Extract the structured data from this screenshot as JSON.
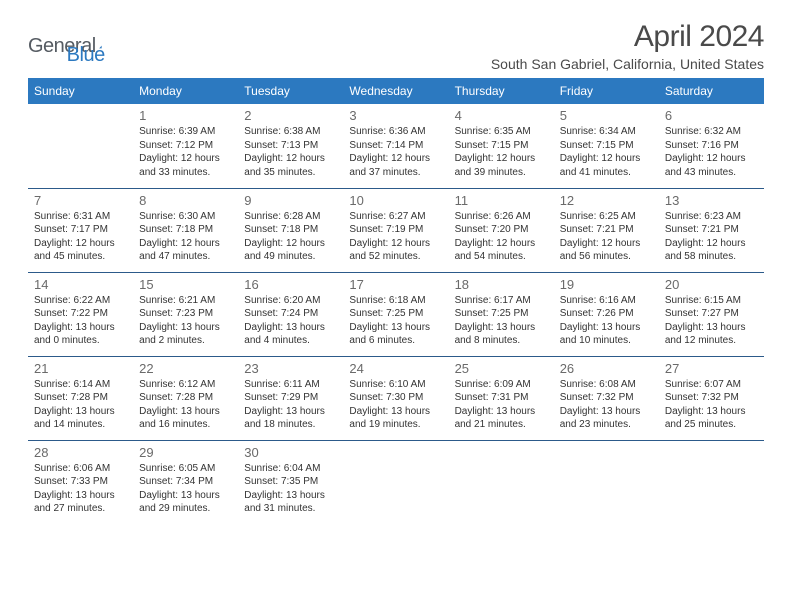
{
  "logo": {
    "general": "General",
    "blue": "Blue"
  },
  "title": "April 2024",
  "location": "South San Gabriel, California, United States",
  "weekdays": [
    "Sunday",
    "Monday",
    "Tuesday",
    "Wednesday",
    "Thursday",
    "Friday",
    "Saturday"
  ],
  "style": {
    "header_bg": "#2c79c0",
    "header_fg": "#ffffff",
    "row_border": "#2c5a8a",
    "daynum_color": "#6a6a6a",
    "text_color": "#333333",
    "title_color": "#4a4a4a",
    "title_fontsize": 30,
    "location_fontsize": 14,
    "th_fontsize": 12,
    "daynum_fontsize": 13,
    "info_fontsize": 10
  },
  "weeks": [
    [
      null,
      {
        "n": "1",
        "sr": "Sunrise: 6:39 AM",
        "ss": "Sunset: 7:12 PM",
        "d1": "Daylight: 12 hours",
        "d2": "and 33 minutes."
      },
      {
        "n": "2",
        "sr": "Sunrise: 6:38 AM",
        "ss": "Sunset: 7:13 PM",
        "d1": "Daylight: 12 hours",
        "d2": "and 35 minutes."
      },
      {
        "n": "3",
        "sr": "Sunrise: 6:36 AM",
        "ss": "Sunset: 7:14 PM",
        "d1": "Daylight: 12 hours",
        "d2": "and 37 minutes."
      },
      {
        "n": "4",
        "sr": "Sunrise: 6:35 AM",
        "ss": "Sunset: 7:15 PM",
        "d1": "Daylight: 12 hours",
        "d2": "and 39 minutes."
      },
      {
        "n": "5",
        "sr": "Sunrise: 6:34 AM",
        "ss": "Sunset: 7:15 PM",
        "d1": "Daylight: 12 hours",
        "d2": "and 41 minutes."
      },
      {
        "n": "6",
        "sr": "Sunrise: 6:32 AM",
        "ss": "Sunset: 7:16 PM",
        "d1": "Daylight: 12 hours",
        "d2": "and 43 minutes."
      }
    ],
    [
      {
        "n": "7",
        "sr": "Sunrise: 6:31 AM",
        "ss": "Sunset: 7:17 PM",
        "d1": "Daylight: 12 hours",
        "d2": "and 45 minutes."
      },
      {
        "n": "8",
        "sr": "Sunrise: 6:30 AM",
        "ss": "Sunset: 7:18 PM",
        "d1": "Daylight: 12 hours",
        "d2": "and 47 minutes."
      },
      {
        "n": "9",
        "sr": "Sunrise: 6:28 AM",
        "ss": "Sunset: 7:18 PM",
        "d1": "Daylight: 12 hours",
        "d2": "and 49 minutes."
      },
      {
        "n": "10",
        "sr": "Sunrise: 6:27 AM",
        "ss": "Sunset: 7:19 PM",
        "d1": "Daylight: 12 hours",
        "d2": "and 52 minutes."
      },
      {
        "n": "11",
        "sr": "Sunrise: 6:26 AM",
        "ss": "Sunset: 7:20 PM",
        "d1": "Daylight: 12 hours",
        "d2": "and 54 minutes."
      },
      {
        "n": "12",
        "sr": "Sunrise: 6:25 AM",
        "ss": "Sunset: 7:21 PM",
        "d1": "Daylight: 12 hours",
        "d2": "and 56 minutes."
      },
      {
        "n": "13",
        "sr": "Sunrise: 6:23 AM",
        "ss": "Sunset: 7:21 PM",
        "d1": "Daylight: 12 hours",
        "d2": "and 58 minutes."
      }
    ],
    [
      {
        "n": "14",
        "sr": "Sunrise: 6:22 AM",
        "ss": "Sunset: 7:22 PM",
        "d1": "Daylight: 13 hours",
        "d2": "and 0 minutes."
      },
      {
        "n": "15",
        "sr": "Sunrise: 6:21 AM",
        "ss": "Sunset: 7:23 PM",
        "d1": "Daylight: 13 hours",
        "d2": "and 2 minutes."
      },
      {
        "n": "16",
        "sr": "Sunrise: 6:20 AM",
        "ss": "Sunset: 7:24 PM",
        "d1": "Daylight: 13 hours",
        "d2": "and 4 minutes."
      },
      {
        "n": "17",
        "sr": "Sunrise: 6:18 AM",
        "ss": "Sunset: 7:25 PM",
        "d1": "Daylight: 13 hours",
        "d2": "and 6 minutes."
      },
      {
        "n": "18",
        "sr": "Sunrise: 6:17 AM",
        "ss": "Sunset: 7:25 PM",
        "d1": "Daylight: 13 hours",
        "d2": "and 8 minutes."
      },
      {
        "n": "19",
        "sr": "Sunrise: 6:16 AM",
        "ss": "Sunset: 7:26 PM",
        "d1": "Daylight: 13 hours",
        "d2": "and 10 minutes."
      },
      {
        "n": "20",
        "sr": "Sunrise: 6:15 AM",
        "ss": "Sunset: 7:27 PM",
        "d1": "Daylight: 13 hours",
        "d2": "and 12 minutes."
      }
    ],
    [
      {
        "n": "21",
        "sr": "Sunrise: 6:14 AM",
        "ss": "Sunset: 7:28 PM",
        "d1": "Daylight: 13 hours",
        "d2": "and 14 minutes."
      },
      {
        "n": "22",
        "sr": "Sunrise: 6:12 AM",
        "ss": "Sunset: 7:28 PM",
        "d1": "Daylight: 13 hours",
        "d2": "and 16 minutes."
      },
      {
        "n": "23",
        "sr": "Sunrise: 6:11 AM",
        "ss": "Sunset: 7:29 PM",
        "d1": "Daylight: 13 hours",
        "d2": "and 18 minutes."
      },
      {
        "n": "24",
        "sr": "Sunrise: 6:10 AM",
        "ss": "Sunset: 7:30 PM",
        "d1": "Daylight: 13 hours",
        "d2": "and 19 minutes."
      },
      {
        "n": "25",
        "sr": "Sunrise: 6:09 AM",
        "ss": "Sunset: 7:31 PM",
        "d1": "Daylight: 13 hours",
        "d2": "and 21 minutes."
      },
      {
        "n": "26",
        "sr": "Sunrise: 6:08 AM",
        "ss": "Sunset: 7:32 PM",
        "d1": "Daylight: 13 hours",
        "d2": "and 23 minutes."
      },
      {
        "n": "27",
        "sr": "Sunrise: 6:07 AM",
        "ss": "Sunset: 7:32 PM",
        "d1": "Daylight: 13 hours",
        "d2": "and 25 minutes."
      }
    ],
    [
      {
        "n": "28",
        "sr": "Sunrise: 6:06 AM",
        "ss": "Sunset: 7:33 PM",
        "d1": "Daylight: 13 hours",
        "d2": "and 27 minutes."
      },
      {
        "n": "29",
        "sr": "Sunrise: 6:05 AM",
        "ss": "Sunset: 7:34 PM",
        "d1": "Daylight: 13 hours",
        "d2": "and 29 minutes."
      },
      {
        "n": "30",
        "sr": "Sunrise: 6:04 AM",
        "ss": "Sunset: 7:35 PM",
        "d1": "Daylight: 13 hours",
        "d2": "and 31 minutes."
      },
      null,
      null,
      null,
      null
    ]
  ]
}
